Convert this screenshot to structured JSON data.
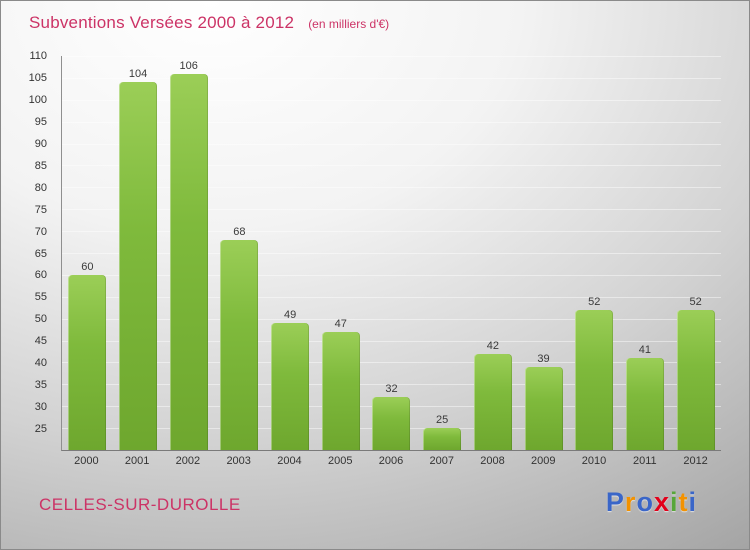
{
  "header": {
    "title": "Subventions Versées 2000 à 2012",
    "subtitle": "(en milliers d'€)",
    "title_color": "#cc3366"
  },
  "footer": {
    "place": "CELLES-SUR-DUROLLE",
    "place_color": "#cc3366",
    "logo_letters": [
      {
        "ch": "P",
        "color": "#3a66c8"
      },
      {
        "ch": "r",
        "color": "#f39200"
      },
      {
        "ch": "o",
        "color": "#3a66c8"
      },
      {
        "ch": "x",
        "color": "#e2001a"
      },
      {
        "ch": "i",
        "color": "#57a639"
      },
      {
        "ch": "t",
        "color": "#f39200"
      },
      {
        "ch": "i",
        "color": "#3a66c8"
      }
    ]
  },
  "chart_data": {
    "type": "bar",
    "title": "Subventions Versées 2000 à 2012",
    "subtitle": "(en milliers d'€)",
    "categories": [
      "2000",
      "2001",
      "2002",
      "2003",
      "2004",
      "2005",
      "2006",
      "2007",
      "2008",
      "2009",
      "2010",
      "2011",
      "2012"
    ],
    "values": [
      60,
      104,
      106,
      68,
      49,
      47,
      32,
      25,
      42,
      39,
      52,
      41,
      52
    ],
    "xlabel": "",
    "ylabel": "",
    "ylim": [
      20,
      110
    ],
    "ytick_step": 5,
    "bar_color": "#7fba3c",
    "grid": true,
    "legend": false
  }
}
